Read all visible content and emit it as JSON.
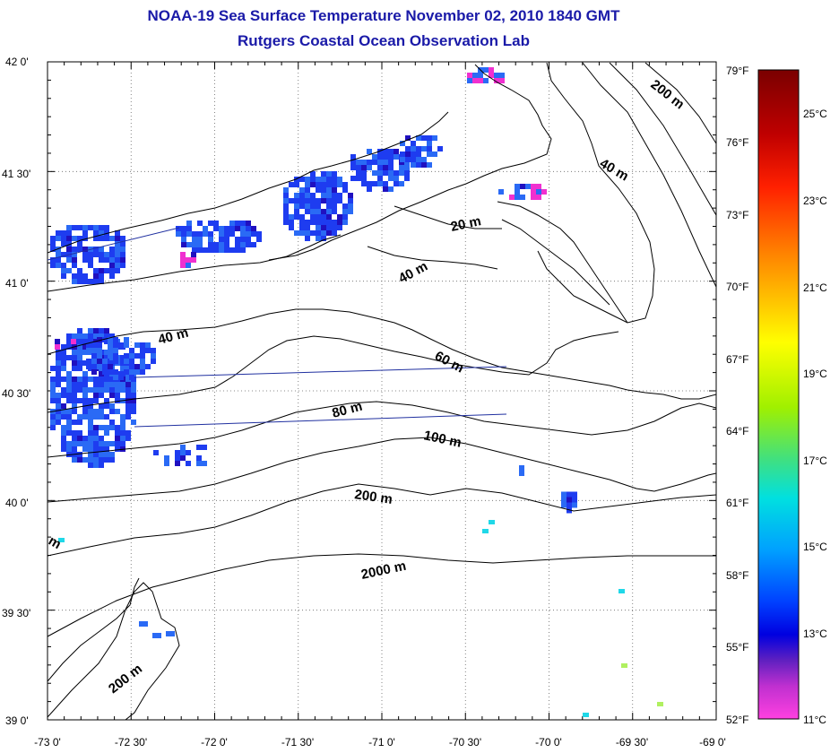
{
  "header": {
    "title": "NOAA-19 Sea Surface Temperature November 02, 2010 1840 GMT",
    "subtitle": "Rutgers Coastal Ocean Observation Lab"
  },
  "map": {
    "lat_ticks": [
      "42 0'",
      "41 30'",
      "41 0'",
      "40 30'",
      "40 0'",
      "39 30'",
      "39 0'"
    ],
    "lon_ticks": [
      "-73 0'",
      "-72 30'",
      "-72 0'",
      "-71 30'",
      "-71 0'",
      "-70 30'",
      "-70 0'",
      "-69 30'",
      "-69 0'"
    ],
    "contour_labels": [
      "200 m",
      "40 m",
      "20 m",
      "40 m",
      "40 m",
      "60 m",
      "80 m",
      "100 m",
      "200 m",
      "2000 m",
      "200 m",
      "m"
    ]
  },
  "colorbar": {
    "fahrenheit_labels": [
      "79°F",
      "76°F",
      "73°F",
      "70°F",
      "67°F",
      "64°F",
      "61°F",
      "58°F",
      "55°F",
      "52°F"
    ],
    "celsius_labels": [
      "25°C",
      "23°C",
      "21°C",
      "19°C",
      "17°C",
      "15°C",
      "13°C",
      "11°C"
    ],
    "gradient_colors": [
      "#7a0000",
      "#c00000",
      "#ff2000",
      "#ff8000",
      "#ffd000",
      "#ffff00",
      "#a0f000",
      "#40e080",
      "#00e0e0",
      "#00a0ff",
      "#0040ff",
      "#0000e0",
      "#4010c0",
      "#a030d0",
      "#ff20d0",
      "#ff40e0"
    ]
  },
  "sst_colors": {
    "cold_blue": "#1e3cf0",
    "mid_blue": "#2a6af5",
    "magenta": "#f030d0",
    "cyan": "#20d8e8",
    "lime": "#b0f060",
    "navy": "#2010c0"
  }
}
